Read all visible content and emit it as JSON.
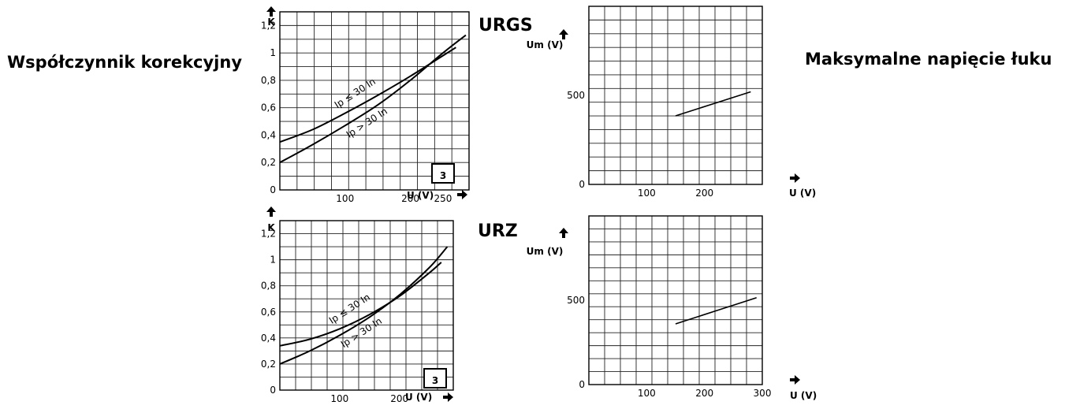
{
  "labels": {
    "left": "Współczynnik korekcyjny",
    "right": "Maksymalne napięcie łuku"
  },
  "sections": {
    "top": "URGS",
    "bottom": "URZ"
  },
  "chart_data": [
    {
      "id": "k-urgs",
      "type": "line",
      "title": "",
      "ylabel": "K",
      "xlabel": "U (V)",
      "xlim": [
        0,
        290
      ],
      "ylim": [
        0,
        1.3
      ],
      "x_ticks": [
        100,
        200,
        250
      ],
      "y_ticks": [
        0,
        0.2,
        0.4,
        0.6,
        0.8,
        1,
        1.2
      ],
      "y_tick_labels": [
        "0",
        "0,2",
        "0,4",
        "0,6",
        "0,8",
        "1",
        "1,2"
      ],
      "badge": "3",
      "series": [
        {
          "name": "Ip ≤ 30 In",
          "x": [
            0,
            50,
            100,
            150,
            200,
            250,
            270
          ],
          "y": [
            0.35,
            0.44,
            0.56,
            0.69,
            0.83,
            0.98,
            1.04
          ]
        },
        {
          "name": "Ip > 30 In",
          "x": [
            0,
            50,
            100,
            150,
            200,
            250,
            285
          ],
          "y": [
            0.2,
            0.33,
            0.47,
            0.62,
            0.8,
            1.0,
            1.13
          ]
        }
      ],
      "grid": true
    },
    {
      "id": "um-urgs",
      "type": "line",
      "title": "",
      "ylabel": "Um (V)",
      "xlabel": "U (V)",
      "xlim": [
        0,
        300
      ],
      "ylim": [
        0,
        1000
      ],
      "x_ticks": [
        100,
        200
      ],
      "y_ticks": [
        0,
        500
      ],
      "y_tick_labels": [
        "0",
        "500"
      ],
      "series": [
        {
          "x": [
            150,
            280
          ],
          "y": [
            385,
            520
          ]
        }
      ],
      "grid": true
    },
    {
      "id": "k-urz",
      "type": "line",
      "title": "",
      "ylabel": "K",
      "xlabel": "U (V)",
      "xlim": [
        0,
        290
      ],
      "ylim": [
        0,
        1.3
      ],
      "x_ticks": [
        100,
        200
      ],
      "y_ticks": [
        0,
        0.2,
        0.4,
        0.6,
        0.8,
        1,
        1.2
      ],
      "y_tick_labels": [
        "0",
        "0,2",
        "0,4",
        "0,6",
        "0,8",
        "1",
        "1,2"
      ],
      "badge": "3",
      "series": [
        {
          "name": "Ip ≤ 30 In",
          "x": [
            0,
            50,
            100,
            150,
            200,
            250,
            270
          ],
          "y": [
            0.34,
            0.39,
            0.47,
            0.58,
            0.72,
            0.9,
            0.98
          ]
        },
        {
          "name": "Ip > 30 In",
          "x": [
            0,
            50,
            100,
            150,
            200,
            250,
            280
          ],
          "y": [
            0.2,
            0.3,
            0.42,
            0.56,
            0.73,
            0.94,
            1.1
          ]
        }
      ],
      "grid": true
    },
    {
      "id": "um-urz",
      "type": "line",
      "title": "",
      "ylabel": "Um (V)",
      "xlabel": "U (V)",
      "xlim": [
        0,
        300
      ],
      "ylim": [
        0,
        1000
      ],
      "x_ticks": [
        100,
        200,
        300
      ],
      "y_ticks": [
        0,
        500
      ],
      "y_tick_labels": [
        "0",
        "500"
      ],
      "series": [
        {
          "x": [
            150,
            290
          ],
          "y": [
            360,
            515
          ]
        }
      ],
      "grid": true
    }
  ]
}
